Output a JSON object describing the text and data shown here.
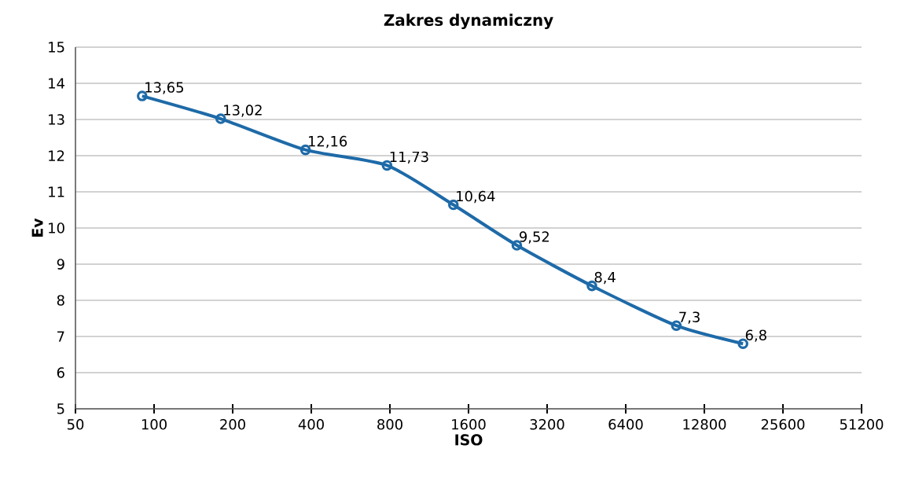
{
  "chart_data": {
    "type": "line",
    "title": "Zakres dynamiczny",
    "xlabel": "ISO",
    "ylabel": "Ev",
    "x": [
      90,
      180,
      380,
      780,
      1400,
      2450,
      4750,
      10000,
      18000
    ],
    "series": [
      {
        "color": "#1e6aa8",
        "values": [
          13.65,
          13.02,
          12.16,
          11.73,
          10.64,
          9.52,
          8.4,
          7.3,
          6.8
        ],
        "value_labels": [
          "13,65",
          "13,02",
          "12,16",
          "11,73",
          "10,64",
          "9,52",
          "8,4",
          "7,3",
          "6,8"
        ]
      }
    ],
    "log": "x",
    "xlim": [
      50,
      51200
    ],
    "xticks": [
      50,
      100,
      200,
      400,
      800,
      1600,
      3200,
      6400,
      12800,
      25600,
      51200
    ],
    "ylim": [
      5,
      15
    ],
    "yticks": [
      5,
      6,
      7,
      8,
      9,
      10,
      11,
      12,
      13,
      14,
      15
    ],
    "grid": "y",
    "marker": "circle",
    "line_style": "solid"
  }
}
